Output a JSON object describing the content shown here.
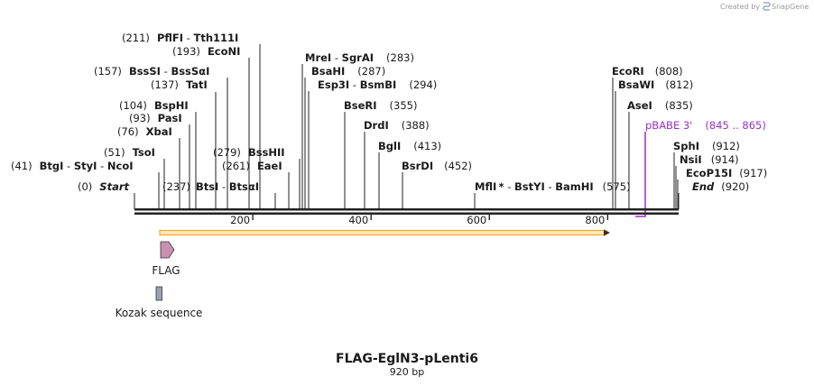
{
  "credit": {
    "text": "Created by",
    "brand": "SnapGene"
  },
  "map": {
    "name": "FLAG-EglN3-pLenti6",
    "length_label": "920 bp",
    "length_bp": 920,
    "ruler_ticks": [
      {
        "bp": 200,
        "label": "200"
      },
      {
        "bp": 400,
        "label": "400"
      },
      {
        "bp": 600,
        "label": "600"
      },
      {
        "bp": 800,
        "label": "800"
      }
    ],
    "colors": {
      "backbone": "#222222",
      "orf_outline": "#f0a830",
      "orf_fill": "#fde9b8",
      "flag_fill": "#c890b0",
      "kozak_fill": "#9aa2b4",
      "primer": "#9b30c7"
    }
  },
  "labels": {
    "start_pos": "(0)",
    "start": "Start",
    "l41_pos": "(41)",
    "btgi": "BtgI",
    "styi": "StyI",
    "ncoi": "NcoI",
    "l51_pos": "(51)",
    "tsoi": "TsoI",
    "l76_pos": "(76)",
    "xbai": "XbaI",
    "l93_pos": "(93)",
    "pasi": "PasI",
    "l104_pos": "(104)",
    "bsphi": "BspHI",
    "l137_pos": "(137)",
    "tati": "TatI",
    "l157_pos": "(157)",
    "bsssi": "BssSI",
    "bsssai": "BssSαI",
    "l193_pos": "(193)",
    "econi": "EcoNI",
    "l211_pos": "(211)",
    "pflfi": "PflFI",
    "tth111i": "Tth111I",
    "l237_pos": "(237)",
    "btsi": "BtsI",
    "btsai": "BtsαI",
    "l261_pos": "(261)",
    "eaei": "EaeI",
    "l279_pos": "(279)",
    "bsshii": "BssHII",
    "l283_pos": "(283)",
    "mrei": "MreI",
    "sgrai": "SgrAI",
    "l287_pos": "(287)",
    "bsahi": "BsaHI",
    "l294_pos": "(294)",
    "esp3i": "Esp3I",
    "bsmbi": "BsmBI",
    "l355_pos": "(355)",
    "bseri": "BseRI",
    "l388_pos": "(388)",
    "drdi": "DrdI",
    "l413_pos": "(413)",
    "bgli": "BglI",
    "l452_pos": "(452)",
    "bsrdi": "BsrDI",
    "l575_pos": "(575)",
    "mfli": "MflI",
    "mfli_star": "*",
    "bstyi": "BstYI",
    "bamhi": "BamHI",
    "l808_pos": "(808)",
    "ecori": "EcoRI",
    "l812_pos": "(812)",
    "bsawi": "BsaWI",
    "l835_pos": "(835)",
    "asei": "AseI",
    "primer_name": "pBABE 3'",
    "primer_range": "(845 .. 865)",
    "l912_pos": "(912)",
    "sphi": "SphI",
    "l914_pos": "(914)",
    "nsii": "NsiI",
    "l917_pos": "(917)",
    "ecop15i": "EcoP15I",
    "l920_pos": "(920)",
    "end": "End"
  },
  "features": {
    "flag": "FLAG",
    "kozak": "Kozak sequence"
  }
}
